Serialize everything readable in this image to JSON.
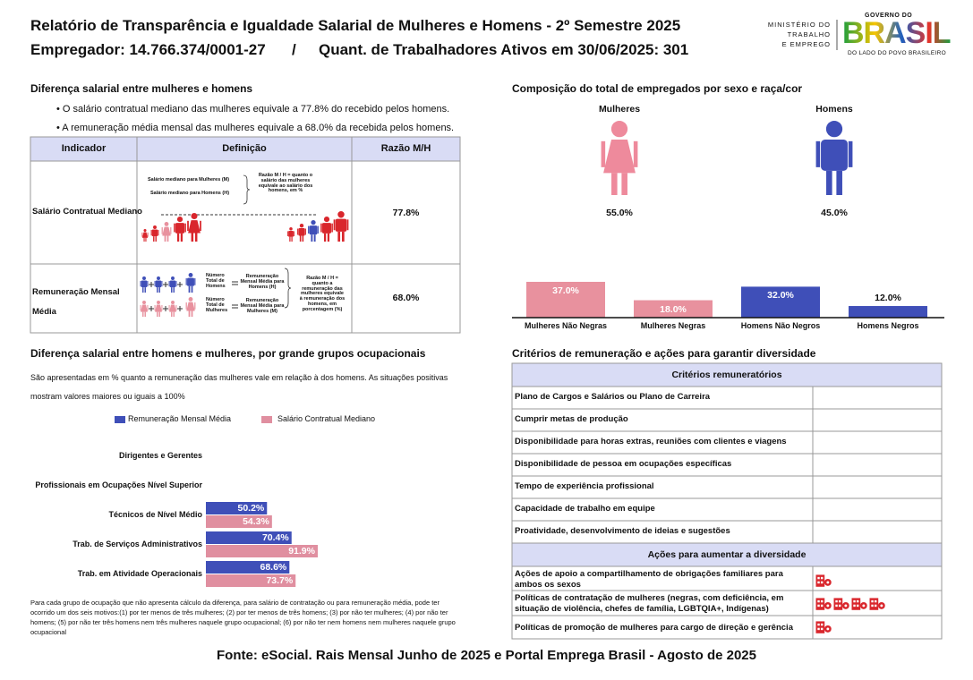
{
  "header": {
    "title": "Relatório de Transparência e Igualdade Salarial de Mulheres e Homens - 2º Semestre 2025",
    "employer": "Empregador: 14.766.374/0001-27",
    "separator": "/",
    "workers": "Quant. de Trabalhadores Ativos em 30/06/2025: 301",
    "ministry": [
      "MINISTÉRIO DO",
      "TRABALHO",
      "E EMPREGO"
    ],
    "government": {
      "top": "GOVERNO DO",
      "name": "BRASIL",
      "slogan": "DO LADO DO POVO BRASILEIRO"
    }
  },
  "salary_gap": {
    "title": "Diferença salarial entre mulheres e homens",
    "bullets": [
      "• O salário contratual mediano das mulheres equivale a 77.8% do recebido pelos homens.",
      "• A remuneração média mensal das mulheres equivale a 68.0% da recebida pelos homens."
    ],
    "table": {
      "headers": [
        "Indicador",
        "Definição",
        "Razão M/H"
      ],
      "rows": [
        {
          "indicator": "Salário Contratual Mediano",
          "definition": [
            "Salário mediano para Mulheres (M)",
            "Salário mediano para Homens (H)",
            "Razão M / H = quanto o salário das mulheres equivale ao salário dos homens, em %"
          ],
          "ratio": "77.8%"
        },
        {
          "indicator": "Remuneração Mensal Média",
          "definition": [
            "Número Total de Homens",
            "Remuneração Mensal Média para Homens (H)",
            "Número Total de Mulheres",
            "Remuneração Mensal Média para Mulheres (M)",
            "Razão M / H = quanto a remuneração das mulheres equivale à remuneração dos homens, em porcentagem (%)"
          ],
          "ratio": "68.0%"
        }
      ]
    }
  },
  "chart_data": [
    {
      "type": "bar",
      "title": "Composição do total de empregados por sexo e raça/cor",
      "groups": [
        {
          "label": "Mulheres",
          "share": "55.0%",
          "color": "#ee8a9c"
        },
        {
          "label": "Homens",
          "share": "45.0%",
          "color": "#3f4fb8"
        }
      ],
      "categories": [
        "Mulheres Não Negras",
        "Mulheres Negras",
        "Homens Não Negros",
        "Homens Negros"
      ],
      "values": [
        37.0,
        18.0,
        32.0,
        12.0
      ],
      "value_labels": [
        "37.0%",
        "18.0%",
        "32.0%",
        "12.0%"
      ],
      "colors": [
        "#e8919e",
        "#e8919e",
        "#3f4fb8",
        "#3f4fb8"
      ]
    },
    {
      "type": "hbar",
      "title": "Diferença salarial entre homens e mulheres, por grande grupos ocupacionais",
      "subtitle": "São apresentadas em % quanto a remuneração das mulheres vale em relação à dos homens. As situações positivas mostram valores maiores ou iguais a 100%",
      "categories": [
        "Dirigentes e Gerentes",
        "Profissionais em Ocupações Nível Superior",
        "Técnicos de Nível Médio",
        "Trab. de Serviços Administrativos",
        "Trab. em Atividade Operacionais"
      ],
      "series": [
        {
          "name": "Remuneração Mensal Média",
          "color": "#3f4fb8",
          "values": [
            null,
            null,
            50.2,
            70.4,
            68.6
          ],
          "value_labels": [
            null,
            null,
            "50.2%",
            "70.4%",
            "68.6%"
          ]
        },
        {
          "name": "Salário Contratual Mediano",
          "color": "#e08fa0",
          "values": [
            null,
            null,
            54.3,
            91.9,
            73.7
          ],
          "value_labels": [
            null,
            null,
            "54.3%",
            "91.9%",
            "73.7%"
          ]
        }
      ],
      "note": "Para cada grupo de ocupação que não apresenta cálculo da diferença, para salário de contratação ou para remuneração média, pode ter ocorrido um dos seis motivos:(1) por ter menos de três mulheres; (2) por ter menos de três homens; (3) por não ter mulheres; (4) por não ter homens; (5) por não ter três homens nem três mulheres naquele grupo ocupacional; (6) por não ter nem homens nem mulheres naquele grupo ocupacional"
    }
  ],
  "criteria": {
    "title": "Critérios de remuneração e ações para garantir diversidade",
    "criteria_header": "Critérios remuneratórios",
    "criteria": [
      "Plano de Cargos e Salários ou Plano de Carreira",
      "Cumprir metas de produção",
      "Disponibilidade para horas extras, reuniões com clientes e viagens",
      "Disponibilidade de pessoa em ocupações específicas",
      "Tempo de experiência profissional",
      "Capacidade de trabalho em equipe",
      "Proatividade, desenvolvimento de ideias e sugestões"
    ],
    "actions_header": "Ações para aumentar a diversidade",
    "actions": [
      "Ações de apoio a compartilhamento de obrigações familiares para ambos os sexos",
      "Políticas de contratação de mulheres (negras, com deficiência, em situação de violência, chefes de família, LGBTQIA+, Indígenas)",
      "Políticas de promoção de mulheres para cargo de direção e gerência"
    ]
  },
  "footer": {
    "source": "Fonte: eSocial. Rais Mensal Junho de 2025 e Portal Emprega Brasil - Agosto de 2025"
  }
}
